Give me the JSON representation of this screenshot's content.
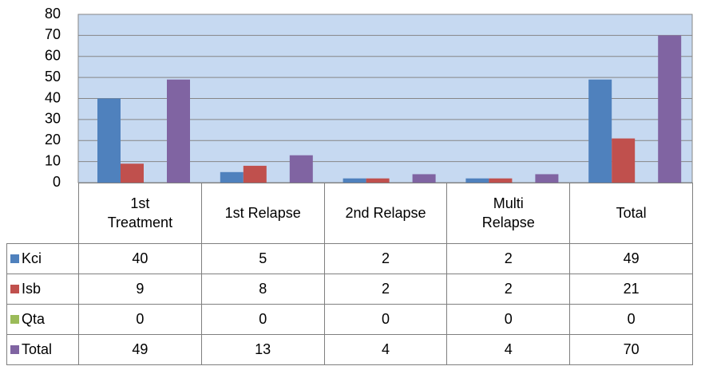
{
  "chart_data": {
    "type": "bar",
    "categories": [
      "1st Treatment",
      "1st Relapse",
      "2nd Relapse",
      "Multi Relapse",
      "Total"
    ],
    "series": [
      {
        "name": "Kci",
        "color": "#4f81bd",
        "values": [
          40,
          5,
          2,
          2,
          49
        ]
      },
      {
        "name": "Isb",
        "color": "#c0504d",
        "values": [
          9,
          8,
          2,
          2,
          21
        ]
      },
      {
        "name": "Qta",
        "color": "#9bbb59",
        "values": [
          0,
          0,
          0,
          0,
          0
        ]
      },
      {
        "name": "Total",
        "color": "#8064a2",
        "values": [
          49,
          13,
          4,
          4,
          70
        ]
      }
    ],
    "ylim": [
      0,
      80
    ],
    "yticks": [
      0,
      10,
      20,
      30,
      40,
      50,
      60,
      70,
      80
    ],
    "grid": true,
    "data_table": true
  }
}
